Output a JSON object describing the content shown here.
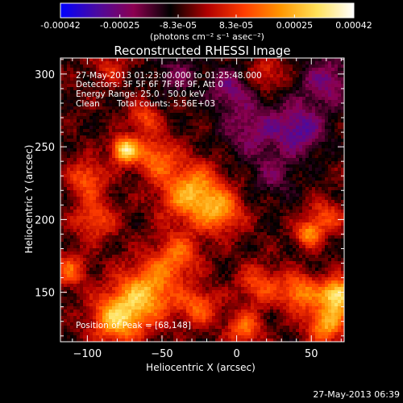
{
  "chart_data": {
    "type": "heatmap",
    "title": "Reconstructed RHESSI Image",
    "xlabel": "Heliocentric X (arcsec)",
    "ylabel": "Heliocentric Y (arcsec)",
    "xlim": [
      -118,
      72
    ],
    "ylim": [
      116,
      311
    ],
    "xticks": [
      -100,
      -50,
      0,
      50
    ],
    "yticks": [
      150,
      200,
      250,
      300
    ],
    "colorbar": {
      "range": [
        -0.00042,
        0.00042
      ],
      "ticks": [
        "-0.00042",
        "-0.00025",
        "-8.3e-05",
        "8.3e-05",
        "0.00025",
        "0.00042"
      ],
      "tick_values": [
        -0.00042,
        -0.00025,
        -8.3e-05,
        8.3e-05,
        0.00025,
        0.00042
      ],
      "unit_label": "(photons cm⁻² s⁻¹ asec⁻²)",
      "colors": [
        "#0000ff",
        "#4b0aa0",
        "#8c0050",
        "#000000",
        "#b00000",
        "#ff3c00",
        "#ff9600",
        "#ffe15a",
        "#ffffff"
      ]
    },
    "info": {
      "time": "27-May-2013 01:23:00.000 to 01:25:48.000",
      "detectors": "Detectors: 3F 5F 6F 7F 8F 9F, Att 0",
      "energy": "Energy Range: 25.0 - 50.0 keV",
      "method": "Clean",
      "counts": "Total counts: 5.56E+03",
      "peak": "Position of Peak = [68,148]"
    },
    "peak": [
      68,
      148
    ],
    "sources": [
      {
        "x": -75,
        "y": 248,
        "amp": 0.0004,
        "sigma": 6
      },
      {
        "x": -55,
        "y": 243,
        "amp": 0.00022,
        "sigma": 10
      },
      {
        "x": -62,
        "y": 270,
        "amp": 0.00018,
        "sigma": 7
      },
      {
        "x": -30,
        "y": 218,
        "amp": 0.00032,
        "sigma": 14
      },
      {
        "x": -10,
        "y": 205,
        "amp": 0.00022,
        "sigma": 10
      },
      {
        "x": -100,
        "y": 228,
        "amp": 0.0002,
        "sigma": 9
      },
      {
        "x": -95,
        "y": 200,
        "amp": 0.00018,
        "sigma": 10
      },
      {
        "x": -40,
        "y": 175,
        "amp": 0.0002,
        "sigma": 11
      },
      {
        "x": -60,
        "y": 150,
        "amp": 0.0003,
        "sigma": 14
      },
      {
        "x": -80,
        "y": 132,
        "amp": 0.00033,
        "sigma": 12
      },
      {
        "x": -25,
        "y": 140,
        "amp": 0.0002,
        "sigma": 9
      },
      {
        "x": 15,
        "y": 155,
        "amp": 0.00018,
        "sigma": 10
      },
      {
        "x": 5,
        "y": 125,
        "amp": 0.00022,
        "sigma": 8
      },
      {
        "x": 42,
        "y": 150,
        "amp": 0.00026,
        "sigma": 9
      },
      {
        "x": 68,
        "y": 148,
        "amp": 0.00042,
        "sigma": 8
      },
      {
        "x": 60,
        "y": 128,
        "amp": 0.0003,
        "sigma": 9
      },
      {
        "x": 48,
        "y": 190,
        "amp": 0.00026,
        "sigma": 6
      },
      {
        "x": 60,
        "y": 202,
        "amp": 0.00018,
        "sigma": 8
      },
      {
        "x": -112,
        "y": 165,
        "amp": 0.0002,
        "sigma": 8
      },
      {
        "x": 20,
        "y": 300,
        "amp": 0.00014,
        "sigma": 8
      },
      {
        "x": -85,
        "y": 305,
        "amp": 0.00012,
        "sigma": 8
      },
      {
        "x": 10,
        "y": 262,
        "amp": -0.00016,
        "sigma": 14
      },
      {
        "x": 42,
        "y": 262,
        "amp": -0.00022,
        "sigma": 12
      },
      {
        "x": 60,
        "y": 295,
        "amp": -0.00018,
        "sigma": 12
      },
      {
        "x": -5,
        "y": 290,
        "amp": -0.00016,
        "sigma": 10
      },
      {
        "x": 25,
        "y": 230,
        "amp": -0.00012,
        "sigma": 10
      },
      {
        "x": -40,
        "y": 300,
        "amp": -0.00012,
        "sigma": 10
      }
    ]
  },
  "footer": {
    "timestamp": "27-May-2013 06:39"
  }
}
